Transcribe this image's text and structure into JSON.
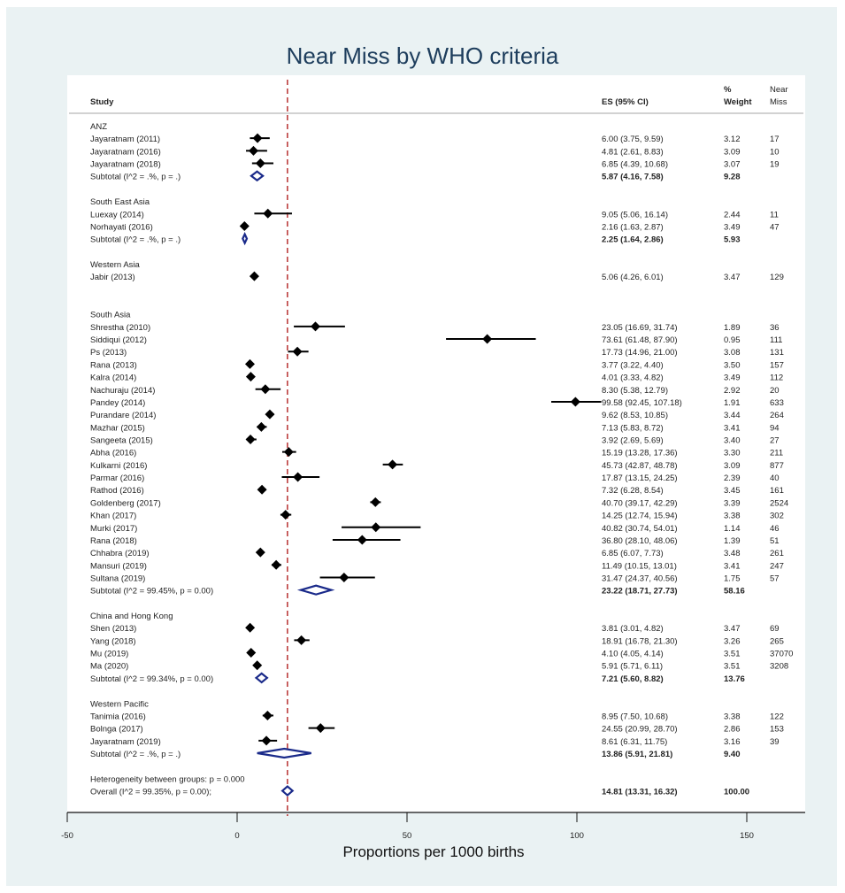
{
  "chart_data": {
    "type": "forest",
    "title": "Near Miss by WHO criteria",
    "xlabel": "Proportions per 1000 births",
    "xlim": [
      -50,
      165
    ],
    "xticks": [
      -50,
      0,
      50,
      100,
      150
    ],
    "reference_line": 14.81,
    "headers": {
      "study": "Study",
      "es": "ES (95% CI)",
      "weight": "% Weight",
      "near_miss": "Near Miss"
    },
    "rows": [
      {
        "kind": "group",
        "label": "ANZ"
      },
      {
        "kind": "study",
        "label": "Jayaratnam (2011)",
        "es": 6.0,
        "lo": 3.75,
        "hi": 9.59,
        "ci_text": "6.00 (3.75, 9.59)",
        "weight": "3.12",
        "near_miss": "17"
      },
      {
        "kind": "study",
        "label": "Jayaratnam (2016)",
        "es": 4.81,
        "lo": 2.61,
        "hi": 8.83,
        "ci_text": "4.81 (2.61, 8.83)",
        "weight": "3.09",
        "near_miss": "10"
      },
      {
        "kind": "study",
        "label": "Jayaratnam (2018)",
        "es": 6.85,
        "lo": 4.39,
        "hi": 10.68,
        "ci_text": "6.85 (4.39, 10.68)",
        "weight": "3.07",
        "near_miss": "19"
      },
      {
        "kind": "subtotal",
        "label": "Subtotal  (I^2 = .%, p = .)",
        "es": 5.87,
        "lo": 4.16,
        "hi": 7.58,
        "ci_text": "5.87 (4.16, 7.58)",
        "weight": "9.28",
        "near_miss": ""
      },
      {
        "kind": "gap"
      },
      {
        "kind": "group",
        "label": "South East Asia"
      },
      {
        "kind": "study",
        "label": "Luexay (2014)",
        "es": 9.05,
        "lo": 5.06,
        "hi": 16.14,
        "ci_text": "9.05 (5.06, 16.14)",
        "weight": "2.44",
        "near_miss": "11"
      },
      {
        "kind": "study",
        "label": "Norhayati (2016)",
        "es": 2.16,
        "lo": 1.63,
        "hi": 2.87,
        "ci_text": "2.16 (1.63, 2.87)",
        "weight": "3.49",
        "near_miss": "47"
      },
      {
        "kind": "subtotal",
        "label": "Subtotal  (I^2 = .%, p = .)",
        "es": 2.25,
        "lo": 1.64,
        "hi": 2.86,
        "ci_text": "2.25 (1.64, 2.86)",
        "weight": "5.93",
        "near_miss": ""
      },
      {
        "kind": "gap"
      },
      {
        "kind": "group",
        "label": "Western Asia"
      },
      {
        "kind": "study",
        "label": "Jabir (2013)",
        "es": 5.06,
        "lo": 4.26,
        "hi": 6.01,
        "ci_text": "5.06 (4.26, 6.01)",
        "weight": "3.47",
        "near_miss": "129"
      },
      {
        "kind": "gap"
      },
      {
        "kind": "gap"
      },
      {
        "kind": "group",
        "label": "South Asia"
      },
      {
        "kind": "study",
        "label": "Shrestha (2010)",
        "es": 23.05,
        "lo": 16.69,
        "hi": 31.74,
        "ci_text": "23.05 (16.69, 31.74)",
        "weight": "1.89",
        "near_miss": "36"
      },
      {
        "kind": "study",
        "label": "Siddiqui (2012)",
        "es": 73.61,
        "lo": 61.48,
        "hi": 87.9,
        "ci_text": "73.61 (61.48, 87.90)",
        "weight": "0.95",
        "near_miss": "111"
      },
      {
        "kind": "study",
        "label": "Ps (2013)",
        "es": 17.73,
        "lo": 14.96,
        "hi": 21.0,
        "ci_text": "17.73 (14.96, 21.00)",
        "weight": "3.08",
        "near_miss": "131"
      },
      {
        "kind": "study",
        "label": "Rana (2013)",
        "es": 3.77,
        "lo": 3.22,
        "hi": 4.4,
        "ci_text": "3.77 (3.22, 4.40)",
        "weight": "3.50",
        "near_miss": "157"
      },
      {
        "kind": "study",
        "label": "Kalra (2014)",
        "es": 4.01,
        "lo": 3.33,
        "hi": 4.82,
        "ci_text": "4.01 (3.33, 4.82)",
        "weight": "3.49",
        "near_miss": "112"
      },
      {
        "kind": "study",
        "label": "Nachuraju  (2014)",
        "es": 8.3,
        "lo": 5.38,
        "hi": 12.79,
        "ci_text": "8.30 (5.38, 12.79)",
        "weight": "2.92",
        "near_miss": "20"
      },
      {
        "kind": "study",
        "label": "Pandey (2014)",
        "es": 99.58,
        "lo": 92.45,
        "hi": 107.18,
        "ci_text": "99.58 (92.45, 107.18)",
        "weight": "1.91",
        "near_miss": "633"
      },
      {
        "kind": "study",
        "label": "Purandare (2014)",
        "es": 9.62,
        "lo": 8.53,
        "hi": 10.85,
        "ci_text": "9.62 (8.53, 10.85)",
        "weight": "3.44",
        "near_miss": "264"
      },
      {
        "kind": "study",
        "label": "Mazhar (2015)",
        "es": 7.13,
        "lo": 5.83,
        "hi": 8.72,
        "ci_text": "7.13 (5.83, 8.72)",
        "weight": "3.41",
        "near_miss": "94"
      },
      {
        "kind": "study",
        "label": "Sangeeta (2015)",
        "es": 3.92,
        "lo": 2.69,
        "hi": 5.69,
        "ci_text": "3.92 (2.69, 5.69)",
        "weight": "3.40",
        "near_miss": "27"
      },
      {
        "kind": "study",
        "label": "Abha (2016)",
        "es": 15.19,
        "lo": 13.28,
        "hi": 17.36,
        "ci_text": "15.19 (13.28, 17.36)",
        "weight": "3.30",
        "near_miss": "211"
      },
      {
        "kind": "study",
        "label": "Kulkarni (2016)",
        "es": 45.73,
        "lo": 42.87,
        "hi": 48.78,
        "ci_text": "45.73 (42.87, 48.78)",
        "weight": "3.09",
        "near_miss": "877"
      },
      {
        "kind": "study",
        "label": "Parmar (2016)",
        "es": 17.87,
        "lo": 13.15,
        "hi": 24.25,
        "ci_text": "17.87 (13.15, 24.25)",
        "weight": "2.39",
        "near_miss": "40"
      },
      {
        "kind": "study",
        "label": "Rathod (2016)",
        "es": 7.32,
        "lo": 6.28,
        "hi": 8.54,
        "ci_text": "7.32 (6.28, 8.54)",
        "weight": "3.45",
        "near_miss": "161"
      },
      {
        "kind": "study",
        "label": "Goldenberg (2017)",
        "es": 40.7,
        "lo": 39.17,
        "hi": 42.29,
        "ci_text": "40.70 (39.17, 42.29)",
        "weight": "3.39",
        "near_miss": "2524"
      },
      {
        "kind": "study",
        "label": "Khan (2017)",
        "es": 14.25,
        "lo": 12.74,
        "hi": 15.94,
        "ci_text": "14.25 (12.74, 15.94)",
        "weight": "3.38",
        "near_miss": "302"
      },
      {
        "kind": "study",
        "label": "Murki (2017)",
        "es": 40.82,
        "lo": 30.74,
        "hi": 54.01,
        "ci_text": "40.82 (30.74, 54.01)",
        "weight": "1.14",
        "near_miss": "46"
      },
      {
        "kind": "study",
        "label": "Rana (2018)",
        "es": 36.8,
        "lo": 28.1,
        "hi": 48.06,
        "ci_text": "36.80 (28.10, 48.06)",
        "weight": "1.39",
        "near_miss": "51"
      },
      {
        "kind": "study",
        "label": "Chhabra (2019)",
        "es": 6.85,
        "lo": 6.07,
        "hi": 7.73,
        "ci_text": "6.85 (6.07, 7.73)",
        "weight": "3.48",
        "near_miss": "261"
      },
      {
        "kind": "study",
        "label": "Mansuri (2019)",
        "es": 11.49,
        "lo": 10.15,
        "hi": 13.01,
        "ci_text": "11.49 (10.15, 13.01)",
        "weight": "3.41",
        "near_miss": "247"
      },
      {
        "kind": "study",
        "label": "Sultana (2019)",
        "es": 31.47,
        "lo": 24.37,
        "hi": 40.56,
        "ci_text": "31.47 (24.37, 40.56)",
        "weight": "1.75",
        "near_miss": "57"
      },
      {
        "kind": "subtotal",
        "label": "Subtotal  (I^2 = 99.45%, p = 0.00)",
        "es": 23.22,
        "lo": 18.71,
        "hi": 27.73,
        "ci_text": "23.22 (18.71, 27.73)",
        "weight": "58.16",
        "near_miss": ""
      },
      {
        "kind": "gap"
      },
      {
        "kind": "group",
        "label": "China and Hong Kong"
      },
      {
        "kind": "study",
        "label": "Shen (2013)",
        "es": 3.81,
        "lo": 3.01,
        "hi": 4.82,
        "ci_text": "3.81 (3.01, 4.82)",
        "weight": "3.47",
        "near_miss": "69"
      },
      {
        "kind": "study",
        "label": "Yang (2018)",
        "es": 18.91,
        "lo": 16.78,
        "hi": 21.3,
        "ci_text": "18.91 (16.78, 21.30)",
        "weight": "3.26",
        "near_miss": "265"
      },
      {
        "kind": "study",
        "label": "Mu  (2019)",
        "es": 4.1,
        "lo": 4.05,
        "hi": 4.14,
        "ci_text": "4.10 (4.05, 4.14)",
        "weight": "3.51",
        "near_miss": "37070"
      },
      {
        "kind": "study",
        "label": "Ma (2020)",
        "es": 5.91,
        "lo": 5.71,
        "hi": 6.11,
        "ci_text": "5.91 (5.71, 6.11)",
        "weight": "3.51",
        "near_miss": "3208"
      },
      {
        "kind": "subtotal",
        "label": "Subtotal  (I^2 = 99.34%, p = 0.00)",
        "es": 7.21,
        "lo": 5.6,
        "hi": 8.82,
        "ci_text": "7.21 (5.60, 8.82)",
        "weight": "13.76",
        "near_miss": ""
      },
      {
        "kind": "gap"
      },
      {
        "kind": "group",
        "label": "Western Pacific"
      },
      {
        "kind": "study",
        "label": "Tanimia (2016)",
        "es": 8.95,
        "lo": 7.5,
        "hi": 10.68,
        "ci_text": "8.95 (7.50, 10.68)",
        "weight": "3.38",
        "near_miss": "122"
      },
      {
        "kind": "study",
        "label": "Bolnga (2017)",
        "es": 24.55,
        "lo": 20.99,
        "hi": 28.7,
        "ci_text": "24.55 (20.99, 28.70)",
        "weight": "2.86",
        "near_miss": "153"
      },
      {
        "kind": "study",
        "label": "Jayaratnam (2019)",
        "es": 8.61,
        "lo": 6.31,
        "hi": 11.75,
        "ci_text": "8.61 (6.31, 11.75)",
        "weight": "3.16",
        "near_miss": "39"
      },
      {
        "kind": "subtotal",
        "label": "Subtotal  (I^2 = .%, p = .)",
        "es": 13.86,
        "lo": 5.91,
        "hi": 21.81,
        "ci_text": "13.86 (5.91, 21.81)",
        "weight": "9.40",
        "near_miss": ""
      },
      {
        "kind": "gap"
      },
      {
        "kind": "note",
        "label": "Heterogeneity between groups: p = 0.000"
      },
      {
        "kind": "overall",
        "label": "Overall  (I^2 = 99.35%, p = 0.00);",
        "es": 14.81,
        "lo": 13.31,
        "hi": 16.32,
        "ci_text": "14.81 (13.31, 16.32)",
        "weight": "100.00",
        "near_miss": ""
      }
    ],
    "colors": {
      "pooled_diamond": "#1a2a8a",
      "reference_line": "#b22222",
      "point": "#000000"
    }
  }
}
